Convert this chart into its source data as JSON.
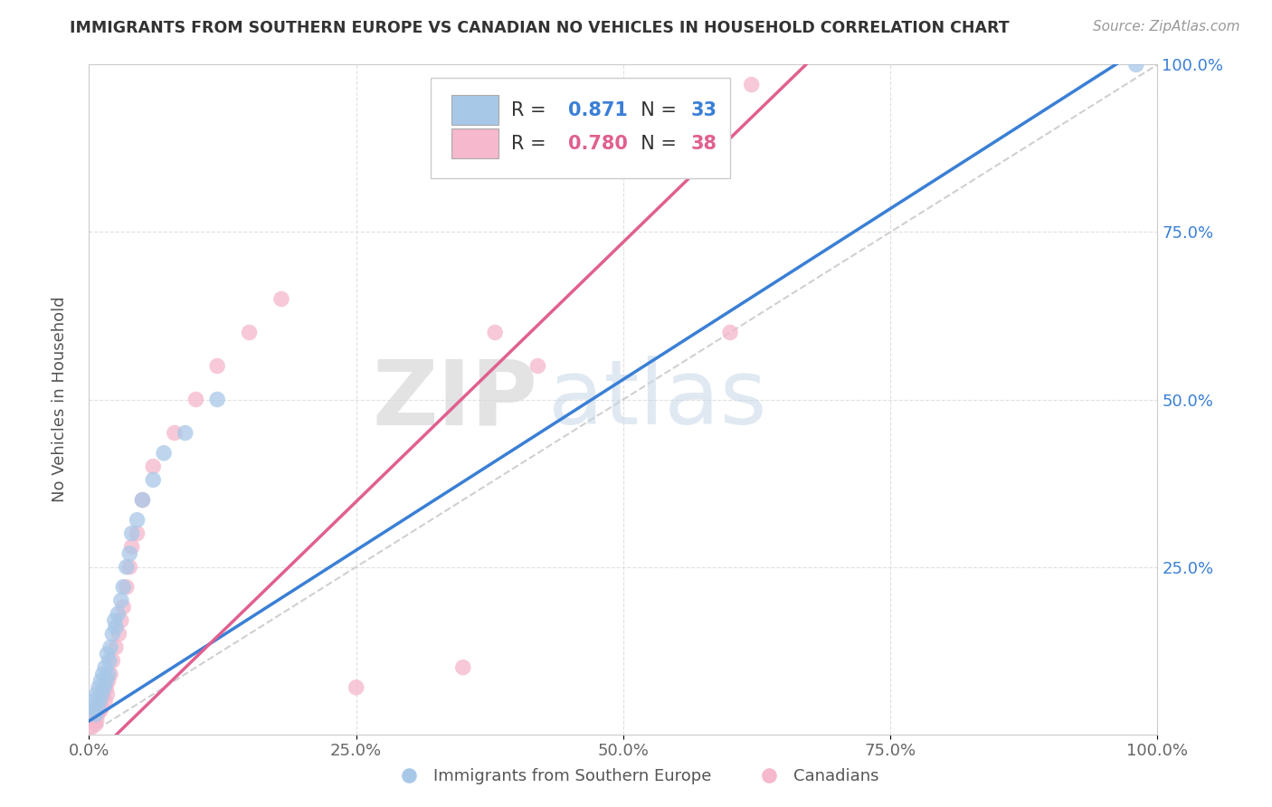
{
  "title": "IMMIGRANTS FROM SOUTHERN EUROPE VS CANADIAN NO VEHICLES IN HOUSEHOLD CORRELATION CHART",
  "source": "Source: ZipAtlas.com",
  "ylabel": "No Vehicles in Household",
  "xlim": [
    0,
    1.0
  ],
  "ylim": [
    0,
    1.0
  ],
  "xticks": [
    0.0,
    0.25,
    0.5,
    0.75,
    1.0
  ],
  "yticks": [
    0.0,
    0.25,
    0.5,
    0.75,
    1.0
  ],
  "xticklabels": [
    "0.0%",
    "25.0%",
    "50.0%",
    "75.0%",
    "100.0%"
  ],
  "yticklabels": [
    "",
    "25.0%",
    "50.0%",
    "75.0%",
    "100.0%"
  ],
  "blue_R": "0.871",
  "blue_N": "33",
  "pink_R": "0.780",
  "pink_N": "38",
  "blue_color": "#a8c8e8",
  "pink_color": "#f5b8cc",
  "blue_line_color": "#3a7fd5",
  "pink_line_color": "#e06090",
  "ref_line_color": "#d0d0d0",
  "watermark_zip": "ZIP",
  "watermark_atlas": "atlas",
  "legend_label_blue": "Immigrants from Southern Europe",
  "legend_label_pink": "Canadians",
  "blue_scatter_x": [
    0.003,
    0.005,
    0.006,
    0.007,
    0.008,
    0.009,
    0.01,
    0.011,
    0.012,
    0.013,
    0.014,
    0.015,
    0.016,
    0.017,
    0.018,
    0.019,
    0.02,
    0.022,
    0.024,
    0.025,
    0.027,
    0.03,
    0.032,
    0.035,
    0.038,
    0.04,
    0.045,
    0.05,
    0.06,
    0.07,
    0.09,
    0.12,
    0.98
  ],
  "blue_scatter_y": [
    0.04,
    0.05,
    0.03,
    0.06,
    0.04,
    0.07,
    0.05,
    0.08,
    0.06,
    0.09,
    0.07,
    0.1,
    0.08,
    0.12,
    0.09,
    0.11,
    0.13,
    0.15,
    0.17,
    0.16,
    0.18,
    0.2,
    0.22,
    0.25,
    0.27,
    0.3,
    0.32,
    0.35,
    0.38,
    0.42,
    0.45,
    0.5,
    1.0
  ],
  "pink_scatter_x": [
    0.002,
    0.004,
    0.005,
    0.006,
    0.007,
    0.008,
    0.009,
    0.01,
    0.011,
    0.012,
    0.013,
    0.015,
    0.016,
    0.017,
    0.018,
    0.02,
    0.022,
    0.025,
    0.028,
    0.03,
    0.032,
    0.035,
    0.038,
    0.04,
    0.045,
    0.05,
    0.06,
    0.08,
    0.1,
    0.12,
    0.15,
    0.18,
    0.25,
    0.35,
    0.38,
    0.42,
    0.6,
    0.62
  ],
  "pink_scatter_y": [
    0.01,
    0.02,
    0.03,
    0.015,
    0.02,
    0.03,
    0.04,
    0.035,
    0.05,
    0.04,
    0.06,
    0.05,
    0.07,
    0.06,
    0.08,
    0.09,
    0.11,
    0.13,
    0.15,
    0.17,
    0.19,
    0.22,
    0.25,
    0.28,
    0.3,
    0.35,
    0.4,
    0.45,
    0.5,
    0.55,
    0.6,
    0.65,
    0.07,
    0.1,
    0.6,
    0.55,
    0.6,
    0.97
  ],
  "blue_line_slope": 1.02,
  "blue_line_intercept": 0.02,
  "pink_line_slope": 1.55,
  "pink_line_intercept": -0.04,
  "background_color": "#ffffff",
  "grid_color": "#e0e0e0"
}
